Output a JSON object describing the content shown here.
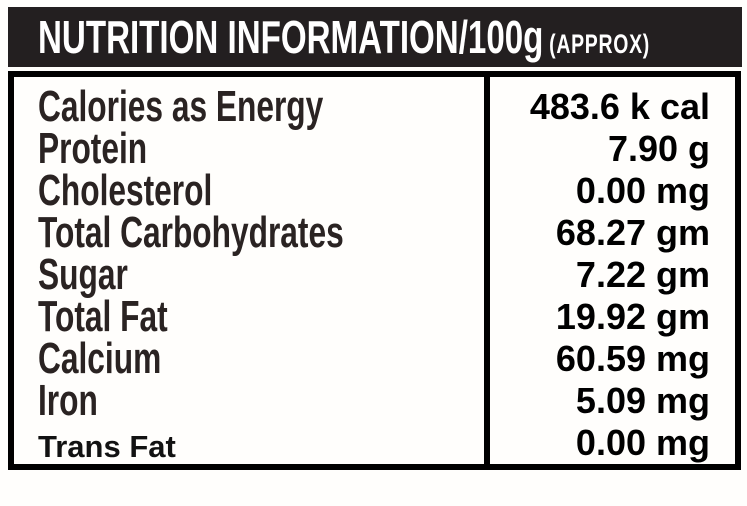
{
  "header": {
    "title": "NUTRITION INFORMATION/100g",
    "approx": "(APPROX)"
  },
  "table": {
    "rows": [
      {
        "label": "Calories as Energy",
        "value": "483.6 k cal"
      },
      {
        "label": "Protein",
        "value": "7.90 g"
      },
      {
        "label": "Cholesterol",
        "value": "0.00 mg"
      },
      {
        "label": "Total Carbohydrates",
        "value": "68.27 gm"
      },
      {
        "label": "Sugar",
        "value": "7.22 gm"
      },
      {
        "label": "Total Fat",
        "value": "19.92 gm"
      },
      {
        "label": "Calcium",
        "value": "60.59 mg"
      },
      {
        "label": "Iron",
        "value": "5.09 mg"
      },
      {
        "label": "Trans Fat",
        "value": "0.00 mg",
        "alt_font": true
      }
    ]
  },
  "colors": {
    "header_bar": "#231f20",
    "header_text": "#ffffff",
    "label_text": "#2a2322",
    "value_text": "#000000",
    "border": "#000000",
    "background": "#fffefc"
  }
}
